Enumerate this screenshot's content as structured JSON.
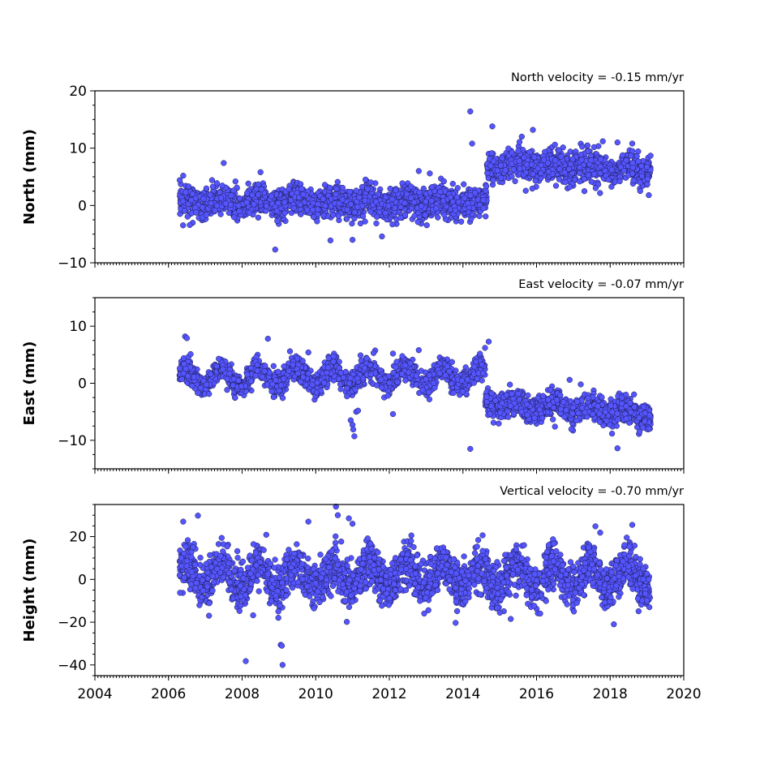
{
  "chart_data": [
    {
      "type": "scatter",
      "ylabel": "North (mm)",
      "annotation": "North velocity = -0.15 mm/yr",
      "xlim": [
        2004,
        2020
      ],
      "ylim": [
        -10,
        20
      ],
      "x_ticks": [
        2004,
        2006,
        2008,
        2010,
        2012,
        2014,
        2016,
        2018,
        2020
      ],
      "y_ticks": [
        -10,
        0,
        10,
        20
      ],
      "marker_color": "#5555ff",
      "edge_color": "#1a1a4a",
      "segments": [
        {
          "x_start": 2006.3,
          "x_end": 2014.65,
          "mean": 0.5,
          "trend": 0,
          "seasonal_amp": 0.6,
          "spread": 1.3
        },
        {
          "x_start": 2014.65,
          "x_end": 2019.1,
          "mean": 7.2,
          "trend": -0.2,
          "seasonal_amp": 0.6,
          "spread": 1.3
        }
      ],
      "points": [
        [
          2006.4,
          5.2
        ],
        [
          2007.5,
          7.4
        ],
        [
          2008.5,
          5.8
        ],
        [
          2008.9,
          -7.7
        ],
        [
          2010.4,
          -6.1
        ],
        [
          2011.0,
          -6.0
        ],
        [
          2011.8,
          -5.4
        ],
        [
          2012.8,
          6.0
        ],
        [
          2013.1,
          5.6
        ],
        [
          2014.2,
          16.4
        ],
        [
          2014.25,
          10.8
        ],
        [
          2014.8,
          13.8
        ],
        [
          2015.6,
          12.0
        ],
        [
          2015.9,
          13.2
        ],
        [
          2018.2,
          11.0
        ],
        [
          2018.6,
          10.8
        ],
        [
          2016.9,
          3.2
        ],
        [
          2017.3,
          2.5
        ],
        [
          2019.05,
          1.8
        ],
        [
          2016.5,
          10.6
        ],
        [
          2017.8,
          11.2
        ]
      ]
    },
    {
      "type": "scatter",
      "ylabel": "East (mm)",
      "annotation": "East velocity = -0.07 mm/yr",
      "xlim": [
        2004,
        2020
      ],
      "ylim": [
        -15,
        15
      ],
      "x_ticks": [
        2004,
        2006,
        2008,
        2010,
        2012,
        2014,
        2016,
        2018,
        2020
      ],
      "y_ticks": [
        -10,
        0,
        10
      ],
      "marker_color": "#5555ff",
      "edge_color": "#1a1a4a",
      "segments": [
        {
          "x_start": 2006.3,
          "x_end": 2014.6,
          "mean": 0.9,
          "trend": 0.05,
          "seasonal_amp": 1.6,
          "spread": 1.0
        },
        {
          "x_start": 2014.6,
          "x_end": 2019.1,
          "mean": -3.4,
          "trend": -0.45,
          "seasonal_amp": 0.8,
          "spread": 1.1
        }
      ],
      "points": [
        [
          2006.45,
          8.2
        ],
        [
          2006.5,
          7.9
        ],
        [
          2006.6,
          5.1
        ],
        [
          2008.7,
          7.8
        ],
        [
          2009.3,
          5.6
        ],
        [
          2009.8,
          5.4
        ],
        [
          2010.95,
          -6.5
        ],
        [
          2011.0,
          -7.3
        ],
        [
          2011.02,
          -8.1
        ],
        [
          2011.05,
          -9.3
        ],
        [
          2011.1,
          -5.0
        ],
        [
          2011.15,
          -4.8
        ],
        [
          2012.1,
          -5.4
        ],
        [
          2012.1,
          5.2
        ],
        [
          2012.8,
          5.8
        ],
        [
          2014.2,
          -11.5
        ],
        [
          2014.6,
          6.2
        ],
        [
          2014.7,
          7.3
        ],
        [
          2016.5,
          -7.6
        ],
        [
          2018.2,
          -11.4
        ],
        [
          2018.8,
          -8.5
        ],
        [
          2016.9,
          0.6
        ],
        [
          2017.2,
          -0.2
        ]
      ]
    },
    {
      "type": "scatter",
      "ylabel": "Height (mm)",
      "annotation": "Vertical velocity = -0.70 mm/yr",
      "xlim": [
        2004,
        2020
      ],
      "ylim": [
        -45,
        35
      ],
      "x_ticks": [
        2004,
        2006,
        2008,
        2010,
        2012,
        2014,
        2016,
        2018,
        2020
      ],
      "y_ticks": [
        -40,
        -20,
        0,
        20
      ],
      "marker_color": "#5555ff",
      "edge_color": "#1a1a4a",
      "segments": [
        {
          "x_start": 2006.3,
          "x_end": 2019.1,
          "mean": 1.5,
          "trend": 0,
          "seasonal_amp": 5.5,
          "spread": 5.0
        }
      ],
      "points": [
        [
          2006.4,
          27.0
        ],
        [
          2006.8,
          29.8
        ],
        [
          2008.1,
          -38.2
        ],
        [
          2009.05,
          -30.6
        ],
        [
          2009.08,
          -31.0
        ],
        [
          2009.1,
          -40.0
        ],
        [
          2010.55,
          34.0
        ],
        [
          2010.6,
          30.0
        ],
        [
          2010.9,
          28.5
        ],
        [
          2011.0,
          26.0
        ],
        [
          2009.8,
          27.0
        ],
        [
          2007.1,
          -17.0
        ],
        [
          2008.3,
          -16.8
        ],
        [
          2013.8,
          -20.3
        ],
        [
          2018.1,
          -21.0
        ],
        [
          2017.6,
          24.8
        ],
        [
          2018.6,
          25.5
        ],
        [
          2012.6,
          20.5
        ],
        [
          2015.3,
          -18.5
        ],
        [
          2016.1,
          -16.0
        ]
      ]
    }
  ]
}
